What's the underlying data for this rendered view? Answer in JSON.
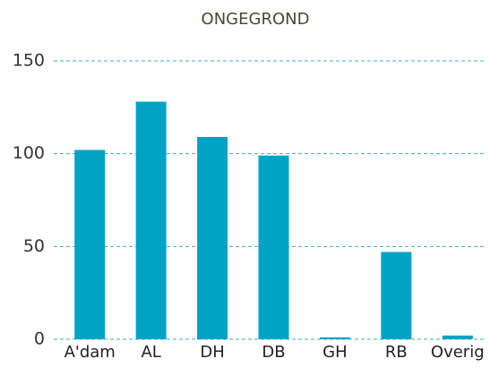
{
  "chart_data": {
    "type": "bar",
    "title": "ONGEGROND",
    "categories": [
      "A'dam",
      "AL",
      "DH",
      "DB",
      "GH",
      "RB",
      "Overig"
    ],
    "values": [
      102,
      128,
      109,
      99,
      1,
      47,
      2
    ],
    "color": "#00a3c4",
    "ylim": [
      0,
      150
    ],
    "yticks": [
      0,
      50,
      100,
      150
    ],
    "grid": true
  }
}
